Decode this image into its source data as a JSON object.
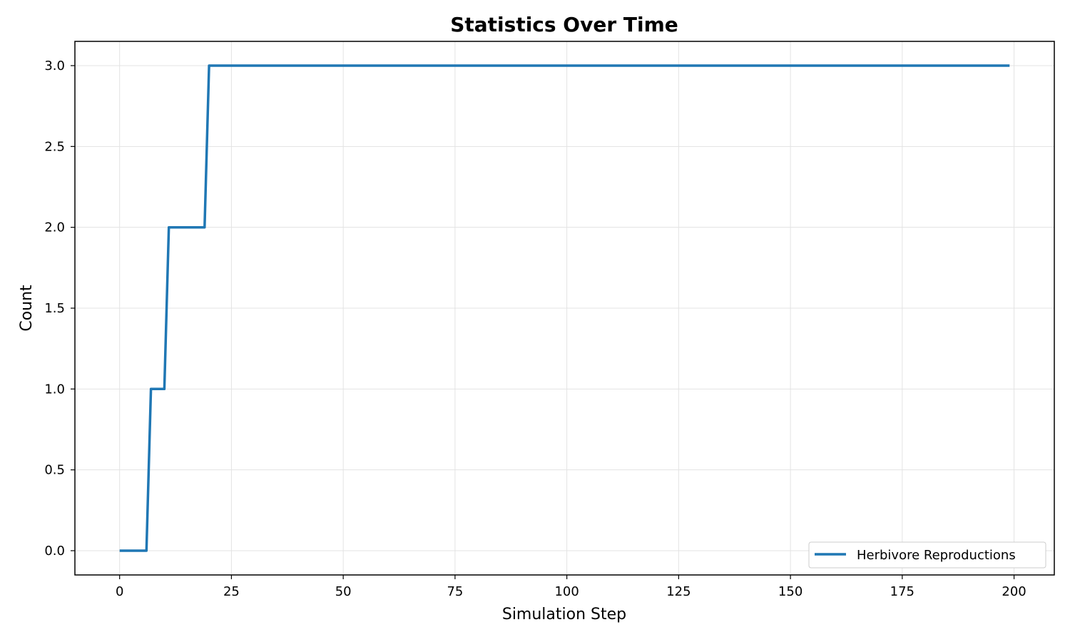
{
  "chart_data": {
    "type": "line",
    "title": "Statistics Over Time",
    "xlabel": "Simulation Step",
    "ylabel": "Count",
    "xlim": [
      -10,
      209
    ],
    "ylim": [
      -0.15,
      3.15
    ],
    "xticks": [
      0,
      25,
      50,
      75,
      100,
      125,
      150,
      175,
      200
    ],
    "yticks": [
      0.0,
      0.5,
      1.0,
      1.5,
      2.0,
      2.5,
      3.0
    ],
    "grid": true,
    "legend_position": "lower-right",
    "series": [
      {
        "name": "Herbivore Reproductions",
        "color": "#1f77b4",
        "x": [
          0,
          6,
          7,
          10,
          11,
          19,
          20,
          199
        ],
        "y": [
          0,
          0,
          1,
          1,
          2,
          2,
          3,
          3
        ]
      }
    ]
  }
}
